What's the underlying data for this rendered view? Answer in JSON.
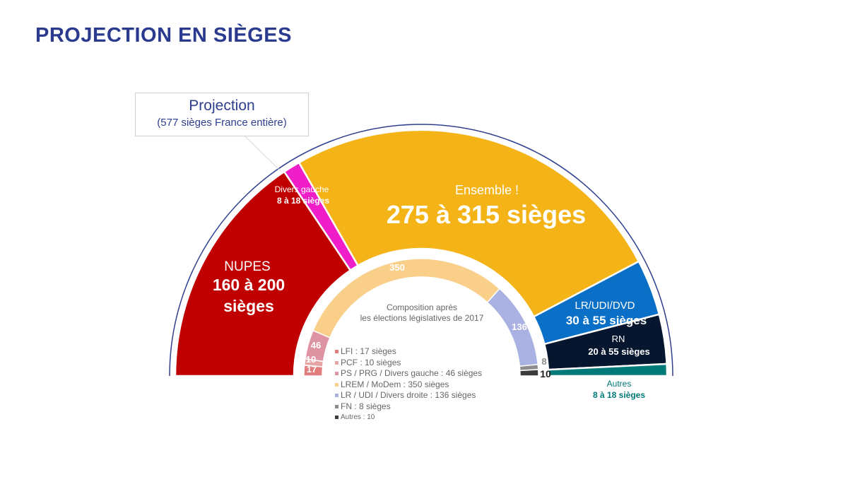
{
  "title": "PROJECTION EN SIÈGES",
  "projection_box": {
    "title": "Projection",
    "subtitle": "(577 sièges France entière)"
  },
  "chart_data": [
    {
      "type": "pie",
      "subtype": "half-donut",
      "title": "",
      "total": 577,
      "series": [
        {
          "name": "NUPES",
          "range": [
            160,
            200
          ],
          "value": 180,
          "color": "#c00000",
          "label_name": "NUPES",
          "label_value": "160 à 200",
          "label_unit": "sièges",
          "label_color": "#ffffff"
        },
        {
          "name": "Divers gauche",
          "range": [
            8,
            18
          ],
          "value": 13,
          "color": "#ef1ec9",
          "label_name": "Divers gauche",
          "label_value": "8 à 18 sièges",
          "label_color": "#ffffff"
        },
        {
          "name": "Ensemble !",
          "range": [
            275,
            315
          ],
          "value": 295,
          "color": "#f4b418",
          "label_name": "Ensemble !",
          "label_value": "275 à 315 sièges",
          "label_color": "#ffffff"
        },
        {
          "name": "LR/UDI/DVD",
          "range": [
            30,
            55
          ],
          "value": 42.5,
          "color": "#0a6fc7",
          "label_name": "LR/UDI/DVD",
          "label_value": "30 à 55 sièges",
          "label_color": "#ffffff"
        },
        {
          "name": "RN",
          "range": [
            20,
            55
          ],
          "value": 37.5,
          "color": "#05162e",
          "label_name": "RN",
          "label_value": "20 à 55 sièges",
          "label_color": "#ffffff"
        },
        {
          "name": "Autres",
          "range": [
            8,
            18
          ],
          "value": 9,
          "color": "#007a78",
          "label_name": "Autres",
          "label_value": "8 à 18 sièges",
          "label_color": "#007a78"
        }
      ]
    },
    {
      "type": "pie",
      "subtype": "half-donut",
      "title": "Composition après",
      "subtitle": "les élections législatives de 2017",
      "total": 577,
      "series": [
        {
          "name": "LFI",
          "value": 17,
          "color": "#e27d7d",
          "legend": "LFI : 17 sièges"
        },
        {
          "name": "PCF",
          "value": 10,
          "color": "#e7a4a4",
          "legend": "PCF : 10 sièges"
        },
        {
          "name": "PS / PRG / Divers gauche",
          "value": 46,
          "color": "#de94a2",
          "legend": "PS / PRG / Divers gauche : 46 sièges"
        },
        {
          "name": "LREM / MoDem",
          "value": 350,
          "color": "#f9cf8a",
          "legend": "LREM / MoDem : 350 sièges"
        },
        {
          "name": "LR / UDI / Divers droite",
          "value": 136,
          "color": "#a9b2e2",
          "legend": "LR / UDI / Divers droite : 136 sièges"
        },
        {
          "name": "FN",
          "value": 8,
          "color": "#8c8c8c",
          "legend": "FN : 8 sièges"
        },
        {
          "name": "Autres",
          "value": 10,
          "color": "#3b3b3b",
          "legend": "Autres : 10"
        }
      ],
      "value_label_colors": [
        "#ffffff",
        "#ffffff",
        "#ffffff",
        "#ffffff",
        "#ffffff",
        "#8c8c8c",
        "#222222"
      ]
    }
  ]
}
